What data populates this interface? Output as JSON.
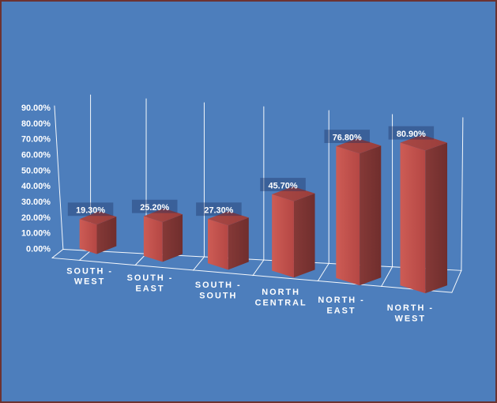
{
  "chart_data": {
    "type": "bar",
    "projection": "3d",
    "title": "",
    "categories": [
      "SOUTH - WEST",
      "SOUTH - EAST",
      "SOUTH - SOUTH",
      "NORTH CENTRAL",
      "NORTH - EAST",
      "NORTH - WEST"
    ],
    "category_lines": [
      [
        "SOUTH -",
        "WEST"
      ],
      [
        "SOUTH -",
        "EAST"
      ],
      [
        "SOUTH -",
        "SOUTH"
      ],
      [
        "NORTH",
        "CENTRAL"
      ],
      [
        "NORTH -",
        "EAST"
      ],
      [
        "NORTH -",
        "WEST"
      ]
    ],
    "values": [
      19.3,
      25.2,
      27.3,
      45.7,
      76.8,
      80.9
    ],
    "data_labels": [
      "19.30%",
      "25.20%",
      "27.30%",
      "45.70%",
      "76.80%",
      "80.90%"
    ],
    "y_ticks": [
      "0.00%",
      "10.00%",
      "20.00%",
      "30.00%",
      "40.00%",
      "50.00%",
      "60.00%",
      "70.00%",
      "80.00%",
      "90.00%"
    ],
    "ylim": [
      0,
      90
    ],
    "y_tick_step": 10,
    "grid": true,
    "legend": false,
    "xlabel": "",
    "ylabel": "",
    "colors": {
      "background": "#4d7ebc",
      "border": "#6c3231",
      "bar_front": "#c0504d",
      "bar_front_light": "#cd5c55",
      "bar_front_dark": "#b54744",
      "bar_top": "#a84845",
      "bar_top_dark": "#9a3e3b",
      "bar_side": "#853937",
      "bar_side_dark": "#702e2d",
      "line": "#ffffff",
      "text": "#ffffff",
      "label_bg": "rgba(28,48,96,0.38)"
    }
  }
}
